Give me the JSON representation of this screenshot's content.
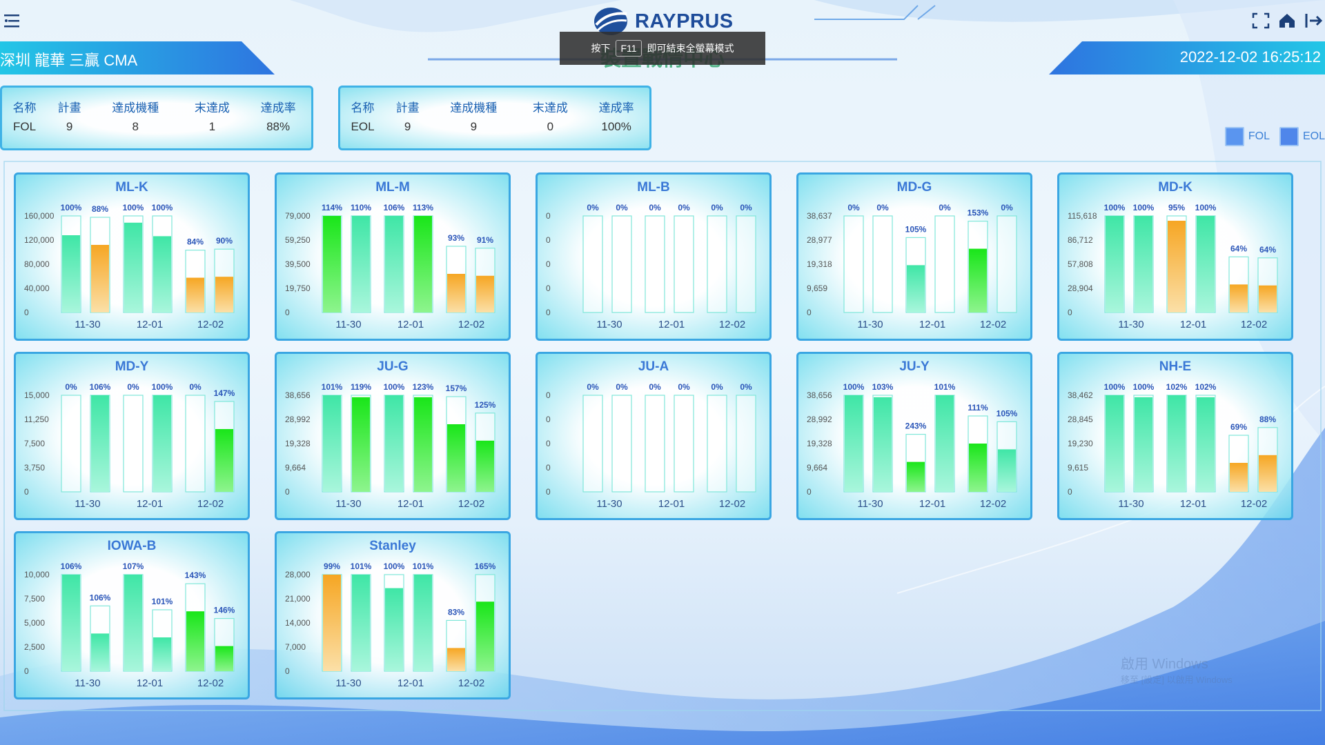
{
  "header": {
    "logo_text": "RAYPRUS",
    "subtitle": "裝置戰情中心",
    "site": "深圳 龍華 三贏 CMA",
    "datetime": "2022-12-02 16:25:12",
    "toast": {
      "before": "按下",
      "key": "F11",
      "after": "即可結束全螢幕模式"
    }
  },
  "colors": {
    "accent": "#3a78d6",
    "green": "#19e619",
    "mint": "#3fe6a6",
    "orange": "#f6a623",
    "border": "#3aa6e2"
  },
  "summaries": [
    {
      "headers": [
        "名称",
        "計畫",
        "達成機種",
        "末達成",
        "達成率"
      ],
      "values": [
        "FOL",
        "9",
        "8",
        "1",
        "88%"
      ]
    },
    {
      "headers": [
        "名称",
        "計畫",
        "達成機種",
        "末達成",
        "達成率"
      ],
      "values": [
        "EOL",
        "9",
        "9",
        "0",
        "100%"
      ]
    }
  ],
  "legend": {
    "items": [
      "FOL",
      "EOL"
    ]
  },
  "watermark": {
    "line1": "啟用 Windows",
    "line2": "移至 [設定] 以啟用 Windows"
  },
  "chart_data": [
    {
      "type": "bar",
      "title": "ML-K",
      "categories": [
        "11-30",
        "12-01",
        "12-02"
      ],
      "yticks": [
        "160,000",
        "120,000",
        "80,000",
        "40,000",
        "0"
      ],
      "ymax": 160000,
      "bars": [
        {
          "pct": "100%",
          "fill": 0.8,
          "color": "mint"
        },
        {
          "pct": "88%",
          "fill": 0.7,
          "color": "orange"
        },
        {
          "pct": "100%",
          "fill": 0.93,
          "color": "mint"
        },
        {
          "pct": "100%",
          "fill": 0.79,
          "color": "mint"
        },
        {
          "pct": "84%",
          "fill": 0.36,
          "color": "orange"
        },
        {
          "pct": "90%",
          "fill": 0.37,
          "color": "orange"
        }
      ]
    },
    {
      "type": "bar",
      "title": "ML-M",
      "categories": [
        "11-30",
        "12-01",
        "12-02"
      ],
      "yticks": [
        "79,000",
        "59,250",
        "39,500",
        "19,750",
        "0"
      ],
      "ymax": 79000,
      "bars": [
        {
          "pct": "114%",
          "fill": 1,
          "color": "green"
        },
        {
          "pct": "110%",
          "fill": 1,
          "color": "mint"
        },
        {
          "pct": "106%",
          "fill": 1,
          "color": "mint"
        },
        {
          "pct": "113%",
          "fill": 1,
          "color": "green"
        },
        {
          "pct": "93%",
          "fill": 0.4,
          "color": "orange"
        },
        {
          "pct": "91%",
          "fill": 0.38,
          "color": "orange"
        }
      ]
    },
    {
      "type": "bar",
      "title": "ML-B",
      "categories": [
        "11-30",
        "12-01",
        "12-02"
      ],
      "yticks": [
        "0",
        "0",
        "0",
        "0",
        "0"
      ],
      "ymax": 0,
      "bars": [
        {
          "pct": "0%",
          "fill": 0,
          "color": "mint"
        },
        {
          "pct": "0%",
          "fill": 0,
          "color": "mint"
        },
        {
          "pct": "0%",
          "fill": 0,
          "color": "mint"
        },
        {
          "pct": "0%",
          "fill": 0,
          "color": "mint"
        },
        {
          "pct": "0%",
          "fill": 0,
          "color": "mint"
        },
        {
          "pct": "0%",
          "fill": 0,
          "color": "mint"
        }
      ]
    },
    {
      "type": "bar",
      "title": "MD-G",
      "categories": [
        "11-30",
        "12-01",
        "12-02"
      ],
      "yticks": [
        "38,637",
        "28,977",
        "19,318",
        "9,659",
        "0"
      ],
      "ymax": 38637,
      "bars": [
        {
          "pct": "0%",
          "fill": 0,
          "color": "mint"
        },
        {
          "pct": "0%",
          "fill": 0,
          "color": "mint"
        },
        {
          "pct": "105%",
          "fill": 0.49,
          "color": "mint"
        },
        {
          "pct": "0%",
          "fill": 0,
          "color": "mint"
        },
        {
          "pct": "153%",
          "fill": 0.66,
          "color": "green"
        },
        {
          "pct": "0%",
          "fill": 0,
          "color": "mint"
        }
      ]
    },
    {
      "type": "bar",
      "title": "MD-K",
      "categories": [
        "11-30",
        "12-01",
        "12-02"
      ],
      "yticks": [
        "115,618",
        "86,712",
        "57,808",
        "28,904",
        "0"
      ],
      "ymax": 115618,
      "bars": [
        {
          "pct": "100%",
          "fill": 1,
          "color": "mint"
        },
        {
          "pct": "100%",
          "fill": 1,
          "color": "mint"
        },
        {
          "pct": "95%",
          "fill": 0.95,
          "color": "orange"
        },
        {
          "pct": "100%",
          "fill": 1,
          "color": "mint"
        },
        {
          "pct": "64%",
          "fill": 0.29,
          "color": "orange"
        },
        {
          "pct": "64%",
          "fill": 0.28,
          "color": "orange"
        }
      ]
    },
    {
      "type": "bar",
      "title": "MD-Y",
      "categories": [
        "11-30",
        "12-01",
        "12-02"
      ],
      "yticks": [
        "15,000",
        "11,250",
        "7,500",
        "3,750",
        "0"
      ],
      "ymax": 15000,
      "bars": [
        {
          "pct": "0%",
          "fill": 0,
          "color": "mint"
        },
        {
          "pct": "106%",
          "fill": 1,
          "color": "mint"
        },
        {
          "pct": "0%",
          "fill": 0,
          "color": "mint"
        },
        {
          "pct": "100%",
          "fill": 1,
          "color": "mint"
        },
        {
          "pct": "0%",
          "fill": 0,
          "color": "mint"
        },
        {
          "pct": "147%",
          "fill": 0.65,
          "color": "green"
        }
      ]
    },
    {
      "type": "bar",
      "title": "JU-G",
      "categories": [
        "11-30",
        "12-01",
        "12-02"
      ],
      "yticks": [
        "38,656",
        "28,992",
        "19,328",
        "9,664",
        "0"
      ],
      "ymax": 38656,
      "bars": [
        {
          "pct": "101%",
          "fill": 1,
          "color": "mint"
        },
        {
          "pct": "119%",
          "fill": 0.98,
          "color": "green"
        },
        {
          "pct": "100%",
          "fill": 1,
          "color": "mint"
        },
        {
          "pct": "123%",
          "fill": 0.98,
          "color": "green"
        },
        {
          "pct": "157%",
          "fill": 0.7,
          "color": "green"
        },
        {
          "pct": "125%",
          "fill": 0.53,
          "color": "green"
        }
      ]
    },
    {
      "type": "bar",
      "title": "JU-A",
      "categories": [
        "11-30",
        "12-01",
        "12-02"
      ],
      "yticks": [
        "0",
        "0",
        "0",
        "0",
        "0"
      ],
      "ymax": 0,
      "bars": [
        {
          "pct": "0%",
          "fill": 0,
          "color": "mint"
        },
        {
          "pct": "0%",
          "fill": 0,
          "color": "mint"
        },
        {
          "pct": "0%",
          "fill": 0,
          "color": "mint"
        },
        {
          "pct": "0%",
          "fill": 0,
          "color": "mint"
        },
        {
          "pct": "0%",
          "fill": 0,
          "color": "mint"
        },
        {
          "pct": "0%",
          "fill": 0,
          "color": "mint"
        }
      ]
    },
    {
      "type": "bar",
      "title": "JU-Y",
      "categories": [
        "11-30",
        "12-01",
        "12-02"
      ],
      "yticks": [
        "38,656",
        "28,992",
        "19,328",
        "9,664",
        "0"
      ],
      "ymax": 38656,
      "bars": [
        {
          "pct": "100%",
          "fill": 1,
          "color": "mint"
        },
        {
          "pct": "103%",
          "fill": 0.98,
          "color": "mint"
        },
        {
          "pct": "243%",
          "fill": 0.31,
          "color": "green"
        },
        {
          "pct": "101%",
          "fill": 1,
          "color": "mint"
        },
        {
          "pct": "111%",
          "fill": 0.5,
          "color": "green"
        },
        {
          "pct": "105%",
          "fill": 0.44,
          "color": "mint"
        }
      ]
    },
    {
      "type": "bar",
      "title": "NH-E",
      "categories": [
        "11-30",
        "12-01",
        "12-02"
      ],
      "yticks": [
        "38,462",
        "28,845",
        "19,230",
        "9,615",
        "0"
      ],
      "ymax": 38462,
      "bars": [
        {
          "pct": "100%",
          "fill": 1,
          "color": "mint"
        },
        {
          "pct": "100%",
          "fill": 0.98,
          "color": "mint"
        },
        {
          "pct": "102%",
          "fill": 1,
          "color": "mint"
        },
        {
          "pct": "102%",
          "fill": 0.98,
          "color": "mint"
        },
        {
          "pct": "69%",
          "fill": 0.3,
          "color": "orange"
        },
        {
          "pct": "88%",
          "fill": 0.38,
          "color": "orange"
        }
      ]
    },
    {
      "type": "bar",
      "title": "IOWA-B",
      "categories": [
        "11-30",
        "12-01",
        "12-02"
      ],
      "yticks": [
        "10,000",
        "7,500",
        "5,000",
        "2,500",
        "0"
      ],
      "ymax": 10000,
      "bars": [
        {
          "pct": "106%",
          "fill": 1,
          "color": "mint"
        },
        {
          "pct": "106%",
          "fill": 0.39,
          "color": "mint"
        },
        {
          "pct": "107%",
          "fill": 1,
          "color": "mint"
        },
        {
          "pct": "101%",
          "fill": 0.35,
          "color": "mint"
        },
        {
          "pct": "143%",
          "fill": 0.62,
          "color": "green"
        },
        {
          "pct": "146%",
          "fill": 0.26,
          "color": "green"
        }
      ]
    },
    {
      "type": "bar",
      "title": "Stanley",
      "categories": [
        "11-30",
        "12-01",
        "12-02"
      ],
      "yticks": [
        "28,000",
        "21,000",
        "14,000",
        "7,000",
        "0"
      ],
      "ymax": 28000,
      "bars": [
        {
          "pct": "99%",
          "fill": 1,
          "color": "orange"
        },
        {
          "pct": "101%",
          "fill": 1,
          "color": "mint"
        },
        {
          "pct": "100%",
          "fill": 0.86,
          "color": "mint"
        },
        {
          "pct": "101%",
          "fill": 1,
          "color": "mint"
        },
        {
          "pct": "83%",
          "fill": 0.24,
          "color": "orange"
        },
        {
          "pct": "165%",
          "fill": 0.72,
          "color": "green"
        }
      ]
    }
  ]
}
